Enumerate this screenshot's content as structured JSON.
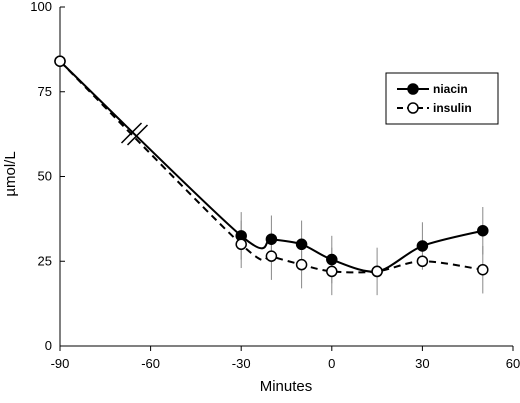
{
  "chart_data": {
    "type": "line",
    "title": "",
    "xlabel": "Minutes",
    "ylabel": "µmol/L",
    "xlim": [
      -90,
      60
    ],
    "ylim": [
      0,
      100
    ],
    "x_ticks": [
      -90,
      -60,
      -30,
      0,
      30,
      60
    ],
    "y_ticks": [
      0,
      25,
      50,
      75,
      100
    ],
    "x_tick_labels": [
      "-90",
      "-60",
      "-30",
      "0",
      "30",
      "60"
    ],
    "y_tick_labels": [
      "0",
      "25",
      "50",
      "75",
      "100"
    ],
    "axis_break": {
      "axis": "x",
      "at": -65
    },
    "grid": false,
    "legend": {
      "placement": "top-right",
      "entries": [
        "niacin",
        "insulin"
      ]
    },
    "series": [
      {
        "name": "niacin",
        "line_style": "solid",
        "marker": "filled-circle",
        "color": "#000000",
        "x": [
          -90,
          -30,
          -20,
          -10,
          0,
          15,
          30,
          50
        ],
        "y": [
          84,
          32.5,
          31.5,
          30,
          25.5,
          22,
          29.5,
          34
        ],
        "error": [
          null,
          7,
          7,
          7,
          7,
          null,
          7,
          7
        ]
      },
      {
        "name": "insulin",
        "line_style": "dashed",
        "marker": "open-circle",
        "color": "#000000",
        "x": [
          -90,
          -30,
          -20,
          -10,
          0,
          15,
          30,
          50
        ],
        "y": [
          84,
          30,
          26.5,
          24,
          22,
          22,
          25,
          22.5
        ],
        "error": [
          null,
          7,
          7,
          7,
          7,
          7,
          null,
          7
        ]
      }
    ]
  }
}
